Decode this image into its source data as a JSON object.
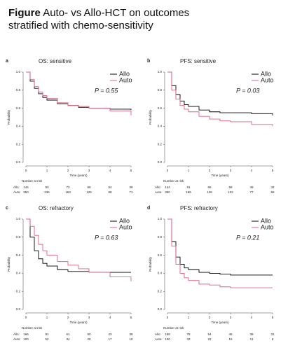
{
  "figure": {
    "label": "Figure",
    "title_lines": [
      "Auto- vs Allo-HCT on outcomes",
      "stratified with chemo-sensitivity"
    ]
  },
  "chart_data": [
    {
      "type": "line",
      "step": true,
      "panel": "a",
      "title": "OS: sensitive",
      "ylabel": "Probability",
      "xlabel": "Time (years)",
      "annotation": "P = 0.55",
      "x": [
        0,
        0.2,
        0.4,
        0.6,
        0.8,
        1,
        1.5,
        2,
        2.5,
        3,
        4,
        5
      ],
      "series": [
        {
          "name": "Allo",
          "color": "#000000",
          "values": [
            1.0,
            0.9,
            0.82,
            0.76,
            0.72,
            0.69,
            0.65,
            0.63,
            0.61,
            0.6,
            0.59,
            0.58
          ]
        },
        {
          "name": "Auto",
          "color": "#e0607e",
          "values": [
            1.0,
            0.92,
            0.84,
            0.78,
            0.74,
            0.71,
            0.66,
            0.63,
            0.62,
            0.6,
            0.57,
            0.52
          ]
        }
      ],
      "xlim": [
        0,
        5
      ],
      "xticks": [
        0,
        1,
        2,
        3,
        4,
        5
      ],
      "ylim": [
        0,
        1
      ],
      "yticks": [
        {
          "value": 0,
          "label": "0.0"
        },
        0.2,
        0.4,
        0.6,
        0.8,
        {
          "value": 1,
          "label": "1.0"
        }
      ],
      "risk_table": {
        "title": "Number at risk",
        "rows": [
          {
            "label": "Allo:",
            "values": [
              144,
              93,
              73,
              65,
              54,
              36
            ]
          },
          {
            "label": "Auto:",
            "values": [
              350,
              236,
              163,
              125,
              98,
              71
            ]
          }
        ]
      }
    },
    {
      "type": "line",
      "step": true,
      "panel": "b",
      "title": "PFS: sensitive",
      "ylabel": "Probability",
      "xlabel": "Time (years)",
      "annotation": "P = 0.03",
      "x": [
        0,
        0.2,
        0.4,
        0.6,
        0.8,
        1,
        1.5,
        2,
        2.5,
        3,
        4,
        5
      ],
      "series": [
        {
          "name": "Allo",
          "color": "#000000",
          "values": [
            1.0,
            0.85,
            0.75,
            0.68,
            0.64,
            0.62,
            0.58,
            0.56,
            0.55,
            0.55,
            0.54,
            0.52
          ]
        },
        {
          "name": "Auto",
          "color": "#e0607e",
          "values": [
            1.0,
            0.8,
            0.7,
            0.63,
            0.59,
            0.56,
            0.51,
            0.48,
            0.46,
            0.45,
            0.42,
            0.4
          ]
        }
      ],
      "xlim": [
        0,
        5
      ],
      "xticks": [
        0,
        1,
        2,
        3,
        4,
        5
      ],
      "ylim": [
        0,
        1
      ],
      "yticks": [
        {
          "value": 0,
          "label": "0.0"
        },
        0.2,
        0.4,
        0.6,
        0.8,
        {
          "value": 1,
          "label": "1.0"
        }
      ],
      "risk_table": {
        "title": "Number at risk",
        "rows": [
          {
            "label": "Allo:",
            "values": [
              144,
              81,
              66,
              58,
              49,
              32
            ]
          },
          {
            "label": "Auto:",
            "values": [
              350,
              186,
              136,
              102,
              77,
              56
            ]
          }
        ]
      }
    },
    {
      "type": "line",
      "step": true,
      "panel": "c",
      "title": "OS: refractory",
      "ylabel": "Probability",
      "xlabel": "Time (years)",
      "annotation": "P = 0.63",
      "x": [
        0,
        0.2,
        0.4,
        0.6,
        0.8,
        1,
        1.5,
        2,
        2.5,
        3,
        4,
        5
      ],
      "series": [
        {
          "name": "Allo",
          "color": "#000000",
          "values": [
            1.0,
            0.8,
            0.65,
            0.56,
            0.51,
            0.48,
            0.44,
            0.42,
            0.42,
            0.41,
            0.41,
            0.41
          ]
        },
        {
          "name": "Auto",
          "color": "#e0607e",
          "values": [
            1.0,
            0.92,
            0.82,
            0.72,
            0.65,
            0.6,
            0.53,
            0.49,
            0.45,
            0.41,
            0.36,
            0.31
          ]
        }
      ],
      "xlim": [
        0,
        5
      ],
      "xticks": [
        0,
        1,
        2,
        3,
        4,
        5
      ],
      "ylim": [
        0,
        1
      ],
      "yticks": [
        {
          "value": 0,
          "label": "0.0"
        },
        0.2,
        0.4,
        0.6,
        0.8,
        {
          "value": 1,
          "label": "1.0"
        }
      ],
      "risk_table": {
        "title": "Number at risk",
        "rows": [
          {
            "label": "Allo:",
            "values": [
              166,
              81,
              61,
              50,
              43,
              35
            ]
          },
          {
            "label": "Auto:",
            "values": [
              100,
              52,
              34,
              26,
              17,
              10
            ]
          }
        ]
      }
    },
    {
      "type": "line",
      "step": true,
      "panel": "d",
      "title": "PFS: refractory",
      "ylabel": "Probability",
      "xlabel": "Time (years)",
      "annotation": "P = 0.21",
      "x": [
        0,
        0.2,
        0.4,
        0.6,
        0.8,
        1,
        1.5,
        2,
        2.5,
        3,
        4,
        5
      ],
      "series": [
        {
          "name": "Allo",
          "color": "#000000",
          "values": [
            1.0,
            0.75,
            0.58,
            0.5,
            0.46,
            0.44,
            0.41,
            0.4,
            0.39,
            0.38,
            0.38,
            0.38
          ]
        },
        {
          "name": "Auto",
          "color": "#e0607e",
          "values": [
            1.0,
            0.7,
            0.5,
            0.4,
            0.35,
            0.32,
            0.28,
            0.27,
            0.25,
            0.24,
            0.24,
            0.24
          ]
        }
      ],
      "xlim": [
        0,
        5
      ],
      "xticks": [
        0,
        1,
        2,
        3,
        4,
        5
      ],
      "ylim": [
        0,
        1
      ],
      "yticks": [
        {
          "value": 0,
          "label": "0.0"
        },
        0.2,
        0.4,
        0.6,
        0.8,
        {
          "value": 1,
          "label": "1.0"
        }
      ],
      "risk_table": {
        "title": "Number at risk",
        "rows": [
          {
            "label": "Allo:",
            "values": [
              168,
              78,
              54,
              45,
              39,
              31
            ]
          },
          {
            "label": "Auto:",
            "values": [
              100,
              33,
              22,
              15,
              11,
              6
            ]
          }
        ]
      }
    }
  ]
}
